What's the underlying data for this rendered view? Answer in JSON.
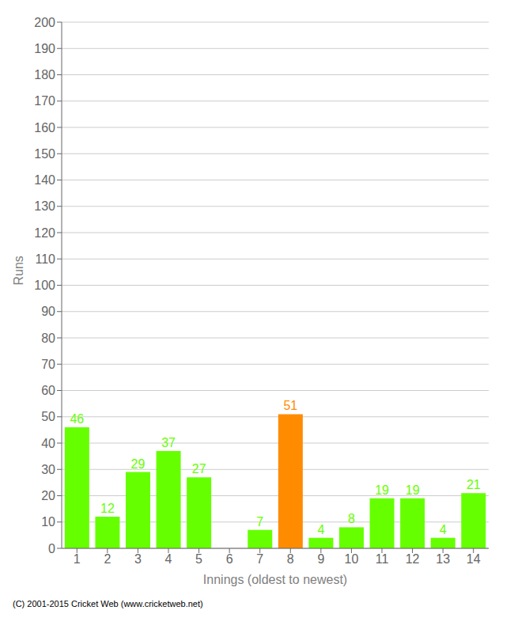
{
  "chart_data": {
    "type": "bar",
    "categories": [
      "1",
      "2",
      "3",
      "4",
      "5",
      "6",
      "7",
      "8",
      "9",
      "10",
      "11",
      "12",
      "13",
      "14"
    ],
    "values": [
      46,
      12,
      29,
      37,
      27,
      0,
      7,
      51,
      4,
      8,
      19,
      19,
      4,
      21
    ],
    "colors": [
      "#66ff00",
      "#66ff00",
      "#66ff00",
      "#66ff00",
      "#66ff00",
      "#66ff00",
      "#66ff00",
      "#ff8c00",
      "#66ff00",
      "#66ff00",
      "#66ff00",
      "#66ff00",
      "#66ff00",
      "#66ff00"
    ],
    "xlabel": "Innings (oldest to newest)",
    "ylabel": "Runs",
    "ylim": [
      0,
      200
    ],
    "yticks": [
      0,
      10,
      20,
      30,
      40,
      50,
      60,
      70,
      80,
      90,
      100,
      110,
      120,
      130,
      140,
      150,
      160,
      170,
      180,
      190,
      200
    ],
    "grid": true,
    "data_labels": true,
    "footer": "(C) 2001-2015 Cricket Web (www.cricketweb.net)"
  }
}
